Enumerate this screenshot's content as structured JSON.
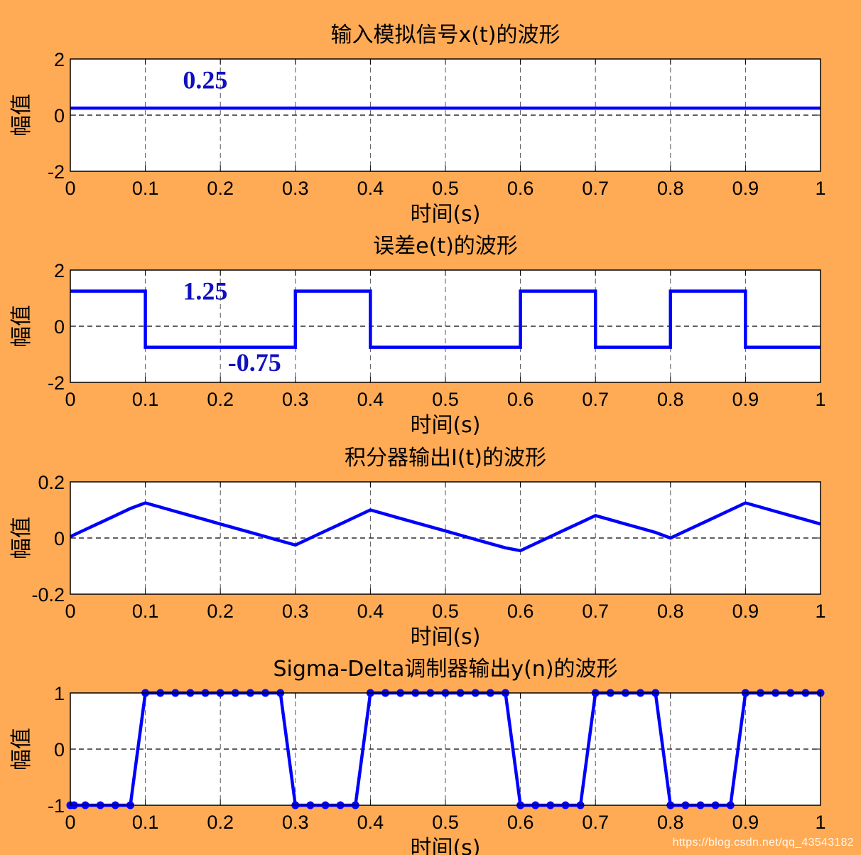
{
  "watermark": "https://blog.csdn.net/qq_43543182",
  "colors": {
    "background": "#ffaa55",
    "plot_background": "#ffffff",
    "series": "#0000ff",
    "annotation": "#1010c0",
    "grid": "#555555"
  },
  "chart_data": [
    {
      "type": "line",
      "title": "输入模拟信号x(t)的波形",
      "xlabel": "时间(s)",
      "ylabel": "幅值",
      "xlim": [
        0,
        1
      ],
      "ylim": [
        -2,
        2
      ],
      "xticks": [
        "0",
        "0.1",
        "0.2",
        "0.3",
        "0.4",
        "0.5",
        "0.6",
        "0.7",
        "0.8",
        "0.9",
        "1"
      ],
      "yticks": [
        "-2",
        "0",
        "2"
      ],
      "grid": true,
      "series": [
        {
          "x": [
            0,
            1
          ],
          "y": [
            0.25,
            0.25
          ]
        }
      ],
      "annotations": [
        {
          "text": "0.25",
          "x": 0.15,
          "y": 0.95
        }
      ]
    },
    {
      "type": "line",
      "title": "误差e(t)的波形",
      "xlabel": "时间(s)",
      "ylabel": "幅值",
      "xlim": [
        0,
        1
      ],
      "ylim": [
        -2,
        2
      ],
      "xticks": [
        "0",
        "0.1",
        "0.2",
        "0.3",
        "0.4",
        "0.5",
        "0.6",
        "0.7",
        "0.8",
        "0.9",
        "1"
      ],
      "yticks": [
        "-2",
        "0",
        "2"
      ],
      "grid": true,
      "series": [
        {
          "x": [
            0,
            0.1,
            0.1,
            0.3,
            0.3,
            0.4,
            0.4,
            0.6,
            0.6,
            0.7,
            0.7,
            0.8,
            0.8,
            0.9,
            0.9,
            1
          ],
          "y": [
            1.25,
            1.25,
            -0.75,
            -0.75,
            1.25,
            1.25,
            -0.75,
            -0.75,
            1.25,
            1.25,
            -0.75,
            -0.75,
            1.25,
            1.25,
            -0.75,
            -0.75
          ]
        }
      ],
      "annotations": [
        {
          "text": "1.25",
          "x": 0.15,
          "y": 0.95
        },
        {
          "text": "-0.75",
          "x": 0.21,
          "y": -1.6
        }
      ]
    },
    {
      "type": "line",
      "title": "积分器输出I(t)的波形",
      "xlabel": "时间(s)",
      "ylabel": "幅值",
      "xlim": [
        0,
        1
      ],
      "ylim": [
        -0.2,
        0.2
      ],
      "xticks": [
        "0",
        "0.1",
        "0.2",
        "0.3",
        "0.4",
        "0.5",
        "0.6",
        "0.7",
        "0.8",
        "0.9",
        "1"
      ],
      "yticks": [
        "-0.2",
        "0",
        "0.2"
      ],
      "grid": true,
      "series": [
        {
          "x": [
            0,
            0.02,
            0.04,
            0.06,
            0.08,
            0.1,
            0.12,
            0.14,
            0.16,
            0.18,
            0.2,
            0.22,
            0.24,
            0.26,
            0.28,
            0.3,
            0.32,
            0.34,
            0.36,
            0.38,
            0.4,
            0.42,
            0.44,
            0.46,
            0.48,
            0.5,
            0.52,
            0.54,
            0.56,
            0.58,
            0.6,
            0.62,
            0.64,
            0.66,
            0.68,
            0.7,
            0.72,
            0.74,
            0.76,
            0.78,
            0.8,
            0.82,
            0.84,
            0.86,
            0.88,
            0.9,
            0.92,
            0.94,
            0.96,
            0.98,
            1
          ],
          "y": [
            0.005,
            0.03,
            0.055,
            0.08,
            0.105,
            0.125,
            0.11,
            0.095,
            0.08,
            0.065,
            0.05,
            0.035,
            0.02,
            0.005,
            -0.01,
            -0.025,
            0.0,
            0.025,
            0.05,
            0.075,
            0.1,
            0.085,
            0.07,
            0.055,
            0.04,
            0.025,
            0.01,
            -0.005,
            -0.02,
            -0.035,
            -0.045,
            -0.02,
            0.005,
            0.03,
            0.055,
            0.08,
            0.065,
            0.05,
            0.035,
            0.02,
            0.0,
            0.025,
            0.05,
            0.075,
            0.1,
            0.125,
            0.11,
            0.095,
            0.08,
            0.065,
            0.05
          ]
        }
      ]
    },
    {
      "type": "line",
      "title": "Sigma-Delta调制器输出y(n)的波形",
      "xlabel": "时间(s)",
      "ylabel": "幅值",
      "xlim": [
        0,
        1
      ],
      "ylim": [
        -1,
        1
      ],
      "xticks": [
        "0",
        "0.1",
        "0.2",
        "0.3",
        "0.4",
        "0.5",
        "0.6",
        "0.7",
        "0.8",
        "0.9",
        "1"
      ],
      "yticks": [
        "-1",
        "0",
        "1"
      ],
      "grid": true,
      "markers": true,
      "series": [
        {
          "x": [
            0,
            0.005,
            0.02,
            0.04,
            0.06,
            0.08,
            0.1,
            0.12,
            0.14,
            0.16,
            0.18,
            0.2,
            0.22,
            0.24,
            0.26,
            0.28,
            0.3,
            0.32,
            0.34,
            0.36,
            0.38,
            0.4,
            0.42,
            0.44,
            0.46,
            0.48,
            0.5,
            0.52,
            0.54,
            0.56,
            0.58,
            0.6,
            0.62,
            0.64,
            0.66,
            0.68,
            0.7,
            0.72,
            0.74,
            0.76,
            0.78,
            0.8,
            0.82,
            0.84,
            0.86,
            0.88,
            0.9,
            0.92,
            0.94,
            0.96,
            0.98,
            1
          ],
          "y": [
            -1,
            -1,
            -1,
            -1,
            -1,
            -1,
            1,
            1,
            1,
            1,
            1,
            1,
            1,
            1,
            1,
            1,
            -1,
            -1,
            -1,
            -1,
            -1,
            1,
            1,
            1,
            1,
            1,
            1,
            1,
            1,
            1,
            1,
            -1,
            -1,
            -1,
            -1,
            -1,
            1,
            1,
            1,
            1,
            1,
            -1,
            -1,
            -1,
            -1,
            -1,
            1,
            1,
            1,
            1,
            1,
            1
          ]
        }
      ]
    }
  ]
}
